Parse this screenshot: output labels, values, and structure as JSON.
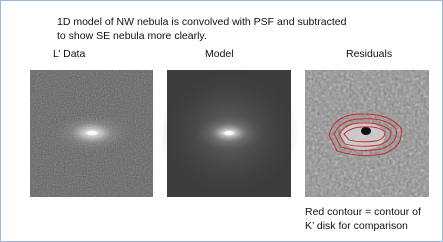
{
  "caption": {
    "lines": [
      "1D model of NW nebula is convolved with PSF and subtracted",
      "to show SE nebula more clearly."
    ]
  },
  "panels": [
    {
      "label": "L’ Data"
    },
    {
      "label": "Model"
    },
    {
      "label": "Residuals"
    }
  ],
  "note": {
    "lines": [
      "Red contour = contour of",
      "K’ disk for comparison"
    ]
  }
}
